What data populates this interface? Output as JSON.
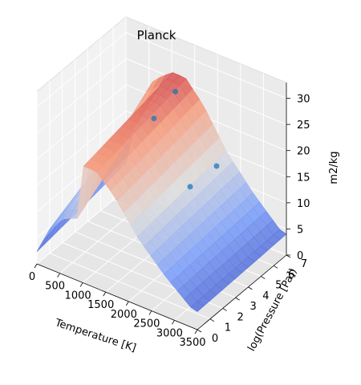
{
  "chart_data": {
    "type": "surface3d",
    "title": "Planck",
    "xlabel": "Temperature [K]",
    "ylabel": "log(Pressure [Pa])",
    "zlabel": "m2/kg",
    "xlim": [
      0,
      3500
    ],
    "ylim": [
      0,
      7
    ],
    "zlim": [
      0,
      33
    ],
    "xticks": [
      "0",
      "500",
      "1000",
      "1500",
      "2000",
      "2500",
      "3000",
      "3500"
    ],
    "yticks": [
      "0",
      "1",
      "2",
      "3",
      "4",
      "5",
      "6",
      "7"
    ],
    "zticks": [
      "0",
      "5",
      "10",
      "15",
      "20",
      "25",
      "30"
    ],
    "colormap": "coolwarm",
    "grid": true,
    "surface_profile": [
      {
        "temperature": 100,
        "value": 9
      },
      {
        "temperature": 300,
        "value": 17
      },
      {
        "temperature": 600,
        "value": 23
      },
      {
        "temperature": 1000,
        "value": 26
      },
      {
        "temperature": 1300,
        "value": 26
      },
      {
        "temperature": 1700,
        "value": 22
      },
      {
        "temperature": 2200,
        "value": 15
      },
      {
        "temperature": 2800,
        "value": 9
      },
      {
        "temperature": 3400,
        "value": 4
      }
    ],
    "scatter_points": [
      {
        "temperature": 1300,
        "log_pressure": 6.2,
        "value": 25
      },
      {
        "temperature": 1000,
        "log_pressure": 5.6,
        "value": 20
      },
      {
        "temperature": 2200,
        "log_pressure": 6.2,
        "value": 14
      },
      {
        "temperature": 1900,
        "log_pressure": 5.2,
        "value": 11
      }
    ]
  }
}
